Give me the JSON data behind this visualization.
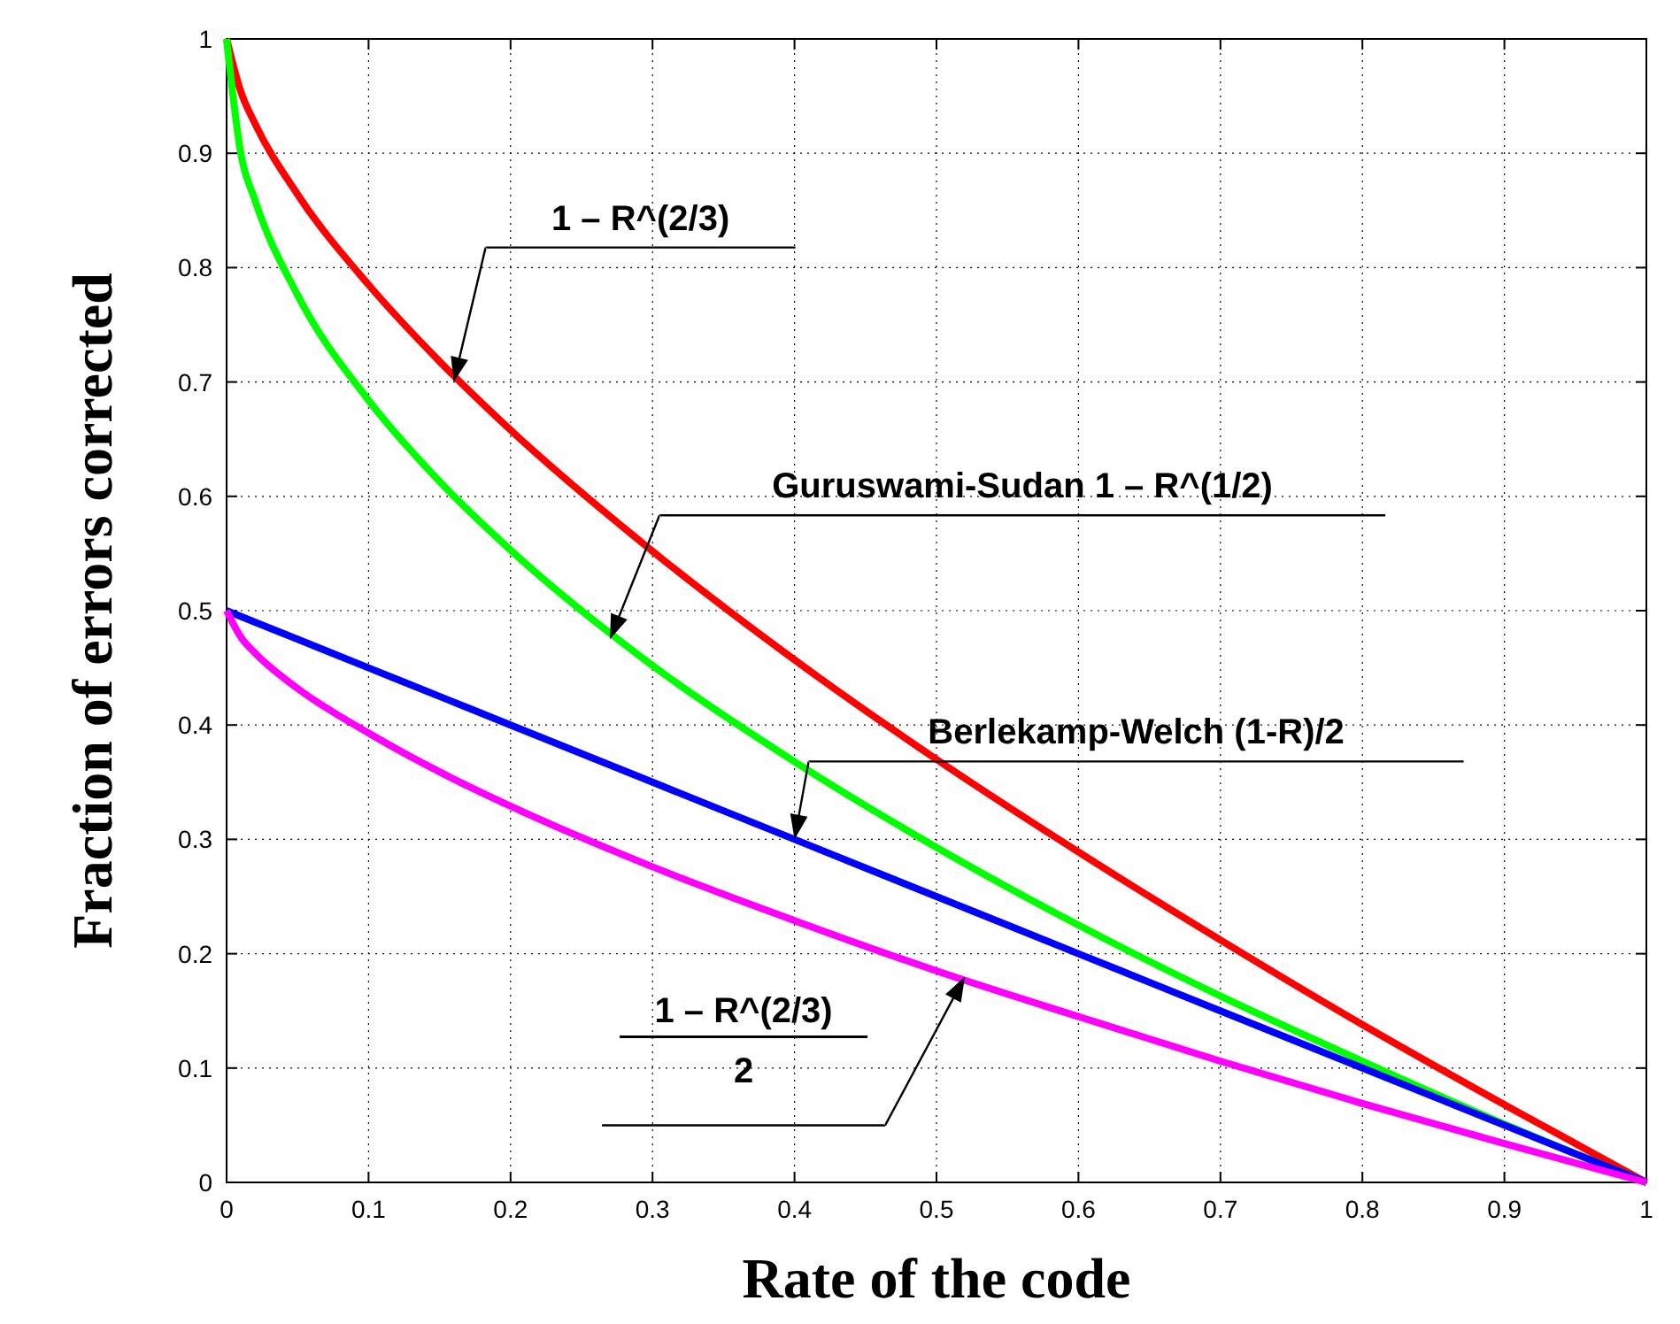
{
  "chart_data": {
    "type": "line",
    "xlabel": "Rate of the code",
    "ylabel": "Fraction of errors corrected",
    "xlim": [
      0,
      1
    ],
    "ylim": [
      0,
      1
    ],
    "xticks": [
      0,
      0.1,
      0.2,
      0.3,
      0.4,
      0.5,
      0.6,
      0.7,
      0.8,
      0.9,
      1
    ],
    "yticks": [
      0,
      0.1,
      0.2,
      0.3,
      0.4,
      0.5,
      0.6,
      0.7,
      0.8,
      0.9,
      1
    ],
    "grid": true,
    "marker": "none",
    "line_style": "solid",
    "x": [
      0,
      0.01,
      0.02,
      0.05,
      0.1,
      0.15,
      0.2,
      0.3,
      0.4,
      0.5,
      0.6,
      0.7,
      0.8,
      0.9,
      1
    ],
    "series": [
      {
        "color": "#ff0000",
        "values": [
          1,
          0.954,
          0.926,
          0.864,
          0.785,
          0.718,
          0.658,
          0.552,
          0.457,
          0.37,
          0.289,
          0.212,
          0.138,
          0.068,
          0
        ]
      },
      {
        "color": "#00ff00",
        "values": [
          1,
          0.9,
          0.859,
          0.776,
          0.684,
          0.613,
          0.553,
          0.452,
          0.368,
          0.293,
          0.225,
          0.163,
          0.106,
          0.051,
          0
        ]
      },
      {
        "color": "#0000ff",
        "values": [
          0.5,
          0.495,
          0.49,
          0.475,
          0.45,
          0.425,
          0.4,
          0.35,
          0.3,
          0.25,
          0.2,
          0.15,
          0.1,
          0.05,
          0
        ]
      },
      {
        "color": "#ff00ff",
        "values": [
          0.5,
          0.477,
          0.463,
          0.432,
          0.393,
          0.359,
          0.329,
          0.276,
          0.229,
          0.185,
          0.145,
          0.106,
          0.069,
          0.034,
          0
        ]
      }
    ],
    "annotations": [
      "1 – R^(2/3)",
      "Guruswami-Sudan 1 – R^(1/2)",
      "Berlekamp-Welch (1-R)/2",
      "1 – R^(2/3)\n2"
    ]
  }
}
